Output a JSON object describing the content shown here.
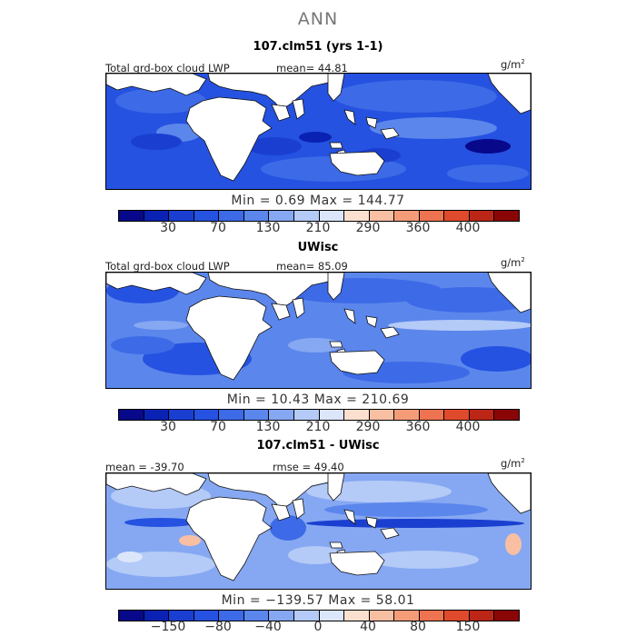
{
  "main_title": "ANN",
  "colors": {
    "levels": [
      "#08088a",
      "#0a22b4",
      "#1a3fd0",
      "#2552e0",
      "#3d6ae6",
      "#5b86ec",
      "#86a8f2",
      "#b4caf7",
      "#dce6fb",
      "#fbe0d0",
      "#f8bfa3",
      "#f49c78",
      "#ee7350",
      "#e04a2c",
      "#bc2616",
      "#8a0606"
    ],
    "land": "#ffffff",
    "coast": "#111111"
  },
  "panels": [
    {
      "title": "107.clm51 (yrs 1-1)",
      "label_left": "Total grd-box cloud LWP",
      "label_mid": "mean=  44.81",
      "units": "g/m",
      "units_sup": "2",
      "stats": "Min =    0.69  Max = 144.77",
      "ticks": [
        "30",
        "70",
        "130",
        "210",
        "290",
        "360",
        "400"
      ],
      "mean_value": 44.81,
      "min_value": 0.69,
      "max_value": 144.77
    },
    {
      "title": "UWisc",
      "label_left": "Total grd-box cloud LWP",
      "label_mid": "mean=  85.09",
      "units": "g/m",
      "units_sup": "2",
      "stats": "Min =   10.43  Max = 210.69",
      "ticks": [
        "30",
        "70",
        "130",
        "210",
        "290",
        "360",
        "400"
      ],
      "mean_value": 85.09,
      "min_value": 10.43,
      "max_value": 210.69
    },
    {
      "title": "107.clm51 - UWisc",
      "label_left": "mean = -39.70",
      "label_mid": "rmse =  49.40",
      "units": "g/m",
      "units_sup": "2",
      "stats": "Min = −139.57  Max =   58.01",
      "ticks": [
        "−150",
        "−80",
        "−40",
        "0",
        "40",
        "80",
        "150"
      ],
      "mean_value": -39.7,
      "rmse_value": 49.4,
      "min_value": -139.57,
      "max_value": 58.01
    }
  ]
}
